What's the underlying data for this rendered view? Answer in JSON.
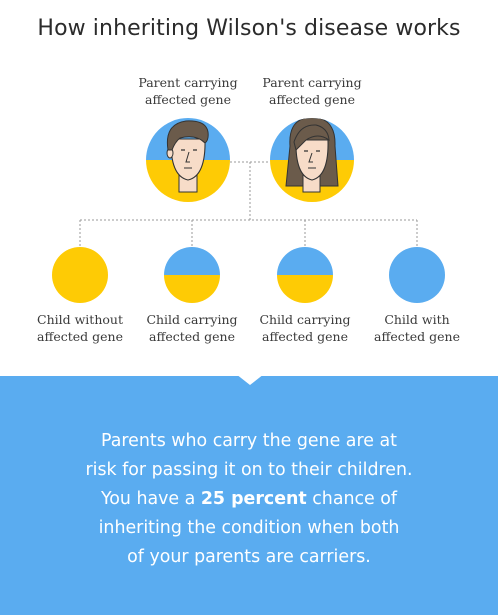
{
  "title": "How inheriting Wilson's disease works",
  "colors": {
    "affected": "#fecb05",
    "unaffected": "#5aacf0",
    "line": "#9a9a9a"
  },
  "parents": [
    {
      "line1": "Parent carrying",
      "line2": "affected gene"
    },
    {
      "line1": "Parent carrying",
      "line2": "affected gene"
    }
  ],
  "children": [
    {
      "line1": "Child without",
      "line2": "affected gene"
    },
    {
      "line1": "Child carrying",
      "line2": "affected gene"
    },
    {
      "line1": "Child carrying",
      "line2": "affected gene"
    },
    {
      "line1": "Child with",
      "line2": "affected gene"
    }
  ],
  "panel": {
    "line1": "Parents who carry the gene are at",
    "line2": "risk for passing it on to their children.",
    "line3_pre": "You have a ",
    "line3_bold": "25 percent",
    "line3_post": " chance of",
    "line4": "inheriting the condition when both",
    "line5": "of your parents are carriers."
  }
}
